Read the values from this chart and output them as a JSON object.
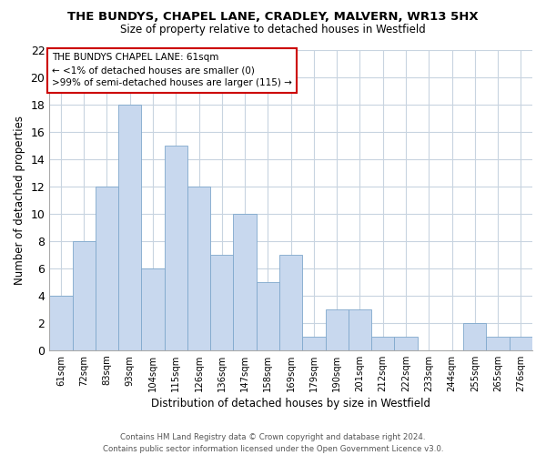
{
  "title1": "THE BUNDYS, CHAPEL LANE, CRADLEY, MALVERN, WR13 5HX",
  "title2": "Size of property relative to detached houses in Westfield",
  "xlabel": "Distribution of detached houses by size in Westfield",
  "ylabel": "Number of detached properties",
  "bin_labels": [
    "61sqm",
    "72sqm",
    "83sqm",
    "93sqm",
    "104sqm",
    "115sqm",
    "126sqm",
    "136sqm",
    "147sqm",
    "158sqm",
    "169sqm",
    "179sqm",
    "190sqm",
    "201sqm",
    "212sqm",
    "222sqm",
    "233sqm",
    "244sqm",
    "255sqm",
    "265sqm",
    "276sqm"
  ],
  "values": [
    4,
    8,
    12,
    18,
    6,
    15,
    12,
    7,
    10,
    5,
    7,
    1,
    3,
    3,
    1,
    1,
    0,
    0,
    2,
    1,
    1
  ],
  "highlight_index": 0,
  "highlight_color": "#c8d8ee",
  "bar_color": "#c8d8ee",
  "bar_edge_color": "#7fa8cc",
  "annotation_box_text": "THE BUNDYS CHAPEL LANE: 61sqm\n← <1% of detached houses are smaller (0)\n>99% of semi-detached houses are larger (115) →",
  "annotation_box_color": "#ffffff",
  "annotation_box_edge_color": "#cc0000",
  "ylim": [
    0,
    22
  ],
  "yticks": [
    0,
    2,
    4,
    6,
    8,
    10,
    12,
    14,
    16,
    18,
    20,
    22
  ],
  "footer_text": "Contains HM Land Registry data © Crown copyright and database right 2024.\nContains public sector information licensed under the Open Government Licence v3.0.",
  "background_color": "#ffffff",
  "grid_color": "#c8d4e0"
}
